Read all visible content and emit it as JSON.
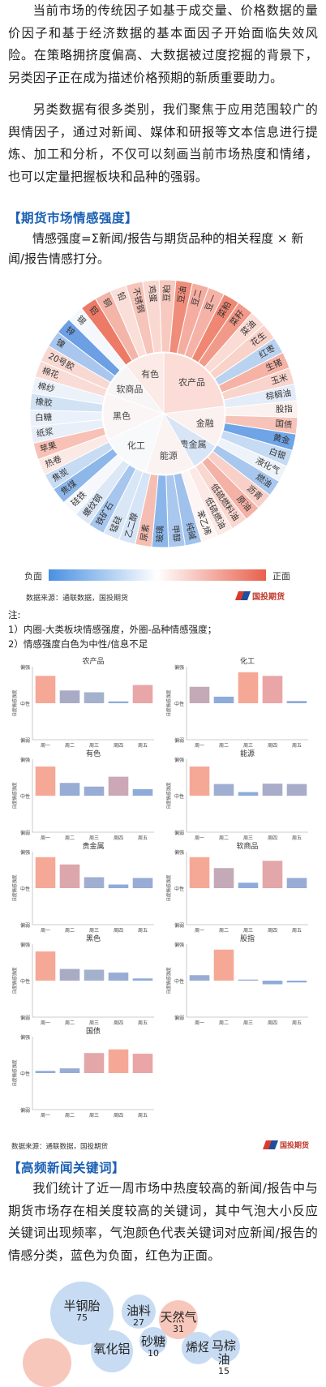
{
  "intro_paragraphs": [
    "当前市场的传统因子如基于成交量、价格数据的量价因子和基于经济数据的基本面因子开始面临失效风险。在策略拥挤度偏高、大数据被过度挖掘的背景下，另类因子正在成为描述价格预期的新质重要助力。",
    "另类数据有很多类别，我们聚焦于应用范围较广的舆情因子，通过对新闻、媒体和研报等文本信息进行提炼、加工和分析，不仅可以刻画当前市场热度和情绪，也可以定量把握板块和品种的强弱。"
  ],
  "section1": {
    "heading": "【期货市场情感强度】",
    "formula": "情感强度=Σ新闻/报告与期货品种的相关程度 × 新闻/报告情感打分。"
  },
  "sunburst": {
    "inner": [
      {
        "label": "有色",
        "color": "#fbeae6"
      },
      {
        "label": "农产品",
        "color": "#fbdcd6"
      },
      {
        "label": "金融",
        "color": "#fbf1ee"
      },
      {
        "label": "贵金属",
        "color": "#d7e5f6"
      },
      {
        "label": "能源",
        "color": "#fbf3f1"
      },
      {
        "label": "化工",
        "color": "#f8f9fb"
      },
      {
        "label": "黑色",
        "color": "#fbf6f5"
      },
      {
        "label": "软商品",
        "color": "#f7f5f6"
      }
    ],
    "outer": [
      {
        "label": "铝",
        "color": "#ed7a66"
      },
      {
        "label": "铜",
        "color": "#f4b5a9"
      },
      {
        "label": "铅",
        "color": "#fadfd9"
      },
      {
        "label": "不锈钢",
        "color": "#f6c4b9"
      },
      {
        "label": "鸡蛋",
        "color": "#f9d8d1"
      },
      {
        "label": "豆粕",
        "color": "#f7c9bf"
      },
      {
        "label": "豆油",
        "color": "#f08c7a"
      },
      {
        "label": "豆二",
        "color": "#f4ada0"
      },
      {
        "label": "豆一",
        "color": "#f5b3a7"
      },
      {
        "label": "菜粕",
        "color": "#ef8773"
      },
      {
        "label": "菜籽",
        "color": "#f29a89"
      },
      {
        "label": "菜油",
        "color": "#fadcd5"
      },
      {
        "label": "花生",
        "color": "#f9d2ca"
      },
      {
        "label": "红枣",
        "color": "#b9d2f0"
      },
      {
        "label": "生猪",
        "color": "#f5b2a5"
      },
      {
        "label": "玉米",
        "color": "#f9d4cc"
      },
      {
        "label": "棕榈油",
        "color": "#e3ecf8"
      },
      {
        "label": "股指",
        "color": "#fbf1ee"
      },
      {
        "label": "国债",
        "color": "#f7c3b8"
      },
      {
        "label": "黄金",
        "color": "#6fa4e6"
      },
      {
        "label": "白银",
        "color": "#c5daf3"
      },
      {
        "label": "液化气",
        "color": "#eef3fa"
      },
      {
        "label": "燃油",
        "color": "#a8c7ee"
      },
      {
        "label": "沥青",
        "color": "#f8d0c8"
      },
      {
        "label": "原油",
        "color": "#f4b1a5"
      },
      {
        "label": "低硫燃料油",
        "color": "#f9d6ce"
      },
      {
        "label": "低硫燃油",
        "color": "#fce9e5"
      },
      {
        "label": "苯乙烯",
        "color": "#fdf5f3"
      },
      {
        "label": "纯碱",
        "color": "#9fc1ec"
      },
      {
        "label": "甲醇",
        "color": "#aac8ee"
      },
      {
        "label": "玻璃",
        "color": "#8bb6ea"
      },
      {
        "label": "尿素",
        "color": "#f6bdb2"
      },
      {
        "label": "乙二醇",
        "color": "#d5e4f6"
      },
      {
        "label": "锰硅",
        "color": "#d9e6f6"
      },
      {
        "label": "铁矿石",
        "color": "#a7c6ee"
      },
      {
        "label": "螺纹钢",
        "color": "#dde8f7"
      },
      {
        "label": "硅铁",
        "color": "#f6f8fb"
      },
      {
        "label": "焦煤",
        "color": "#8db6e9"
      },
      {
        "label": "焦炭",
        "color": "#c7dbf3"
      },
      {
        "label": "热卷",
        "color": "#fbe9e5"
      },
      {
        "label": "苹果",
        "color": "#f7c1b5"
      },
      {
        "label": "纸浆",
        "color": "#e8eff9"
      },
      {
        "label": "白糖",
        "color": "#eaf1fa"
      },
      {
        "label": "橡胶",
        "color": "#d2e2f5"
      },
      {
        "label": "棉纱",
        "color": "#ecf2fa"
      },
      {
        "label": "棉花",
        "color": "#f9dcd5"
      },
      {
        "label": "20号胶",
        "color": "#f8d9d2"
      },
      {
        "label": "镍",
        "color": "#a9c7ee"
      },
      {
        "label": "锌",
        "color": "#6c9fe4"
      },
      {
        "label": "锡",
        "color": "#f4f7fb"
      }
    ]
  },
  "legend": {
    "negative": "负面",
    "positive": "正面",
    "gradient_start": "#4a90e2",
    "gradient_mid": "#ffffff",
    "gradient_end": "#e8604c"
  },
  "source1": "数据来源：通联数据，国投期货",
  "logo_text": "国投期货",
  "logo_sub": "SDIC FUTURES",
  "notes": {
    "title": "注:",
    "items": [
      "1）内圈-大类板块情感强度，外圈-品种情感强度；",
      "2）情感强度白色为中性/信息不足"
    ]
  },
  "small_charts_common": {
    "ylabel": "日度情感强度",
    "ytick_top": "偏强",
    "ytick_mid": "中性",
    "ytick_bottom": "偏弱",
    "days": [
      "周一",
      "周二",
      "周三",
      "周四",
      "周五"
    ]
  },
  "small_charts": [
    {
      "title": "农产品",
      "values": [
        0.75,
        0.35,
        0.3,
        0.05,
        0.5
      ],
      "colors": [
        "#f6a897",
        "#a9abc4",
        "#a4b1cd",
        "#8fabd9",
        "#e8a6a8"
      ]
    },
    {
      "title": "化工",
      "values": [
        0.45,
        0.18,
        0.85,
        0.75,
        0.06
      ],
      "colors": [
        "#c4a9b7",
        "#8fabd9",
        "#f6a897",
        "#eaa5a6",
        "#8fabd9"
      ]
    },
    {
      "title": "有色",
      "values": [
        0.8,
        0.35,
        0.25,
        0.52,
        0.18
      ],
      "colors": [
        "#f6a897",
        "#98acd5",
        "#98acd5",
        "#cca7b6",
        "#8fabd9"
      ]
    },
    {
      "title": "能源",
      "values": [
        0.8,
        0.32,
        0.1,
        0.33,
        0.32
      ],
      "colors": [
        "#f6a897",
        "#a0aed1",
        "#8fabd9",
        "#a9acc9",
        "#a9acc9"
      ]
    },
    {
      "title": "贵金属",
      "values": [
        0.85,
        0.65,
        0.3,
        0.1,
        0.28
      ],
      "colors": [
        "#f6a897",
        "#dba7ad",
        "#a0aed1",
        "#8fabd9",
        "#98acd5"
      ]
    },
    {
      "title": "软商品",
      "values": [
        0.85,
        0.55,
        0.15,
        0.75,
        0.28
      ],
      "colors": [
        "#f6a897",
        "#c4a9b7",
        "#8fabd9",
        "#e3a6a9",
        "#98acd5"
      ]
    },
    {
      "title": "黑色",
      "values": [
        0.8,
        0.32,
        0.3,
        0.22,
        0.06
      ],
      "colors": [
        "#f6a897",
        "#a9abc4",
        "#a4b1cd",
        "#98acd5",
        "#8fabd9"
      ]
    },
    {
      "title": "股指",
      "values": [
        0.15,
        0.85,
        0.03,
        -0.1,
        -0.05
      ],
      "colors": [
        "#98acd5",
        "#f6a897",
        "#a4b1cd",
        "#8fabd9",
        "#8fabd9"
      ]
    },
    {
      "title": "国债",
      "values": [
        0.06,
        0.13,
        0.55,
        0.65,
        0.53
      ],
      "colors": [
        "#8fabd9",
        "#98acd5",
        "#e3a6a9",
        "#f6a897",
        "#eaa5a6"
      ]
    }
  ],
  "source2": "数据来源：通联数据，国投期货",
  "section2": {
    "heading": "【高频新闻关键词】",
    "paragraph": "我们统计了近一周市场中热度较高的新闻/报告中与期货市场存在相关度较高的关键词，其中气泡大小反应关键词出现频率，气泡颜色代表关键词对应新闻/报告的情感分类，蓝色为负面，红色为正面。"
  },
  "bubbles": [
    {
      "word": "半钢胎",
      "count": "75",
      "color": "#c7dbf3"
    },
    {
      "word": "油料",
      "count": "27",
      "color": "#c7dbf3"
    },
    {
      "word": "天然气",
      "count": "31",
      "color": "#f8c7bc"
    },
    {
      "word": "氧化铝",
      "count": "",
      "color": "#c7dbf3"
    },
    {
      "word": "砂糖",
      "count": "10",
      "color": "#c7dbf3"
    },
    {
      "word": "烯烃",
      "count": "",
      "color": "#c7dbf3"
    },
    {
      "word": "马棕油",
      "count": "15",
      "color": "#c7dbf3"
    },
    {
      "word": "",
      "count": "",
      "color": "#f8c7bc"
    }
  ]
}
